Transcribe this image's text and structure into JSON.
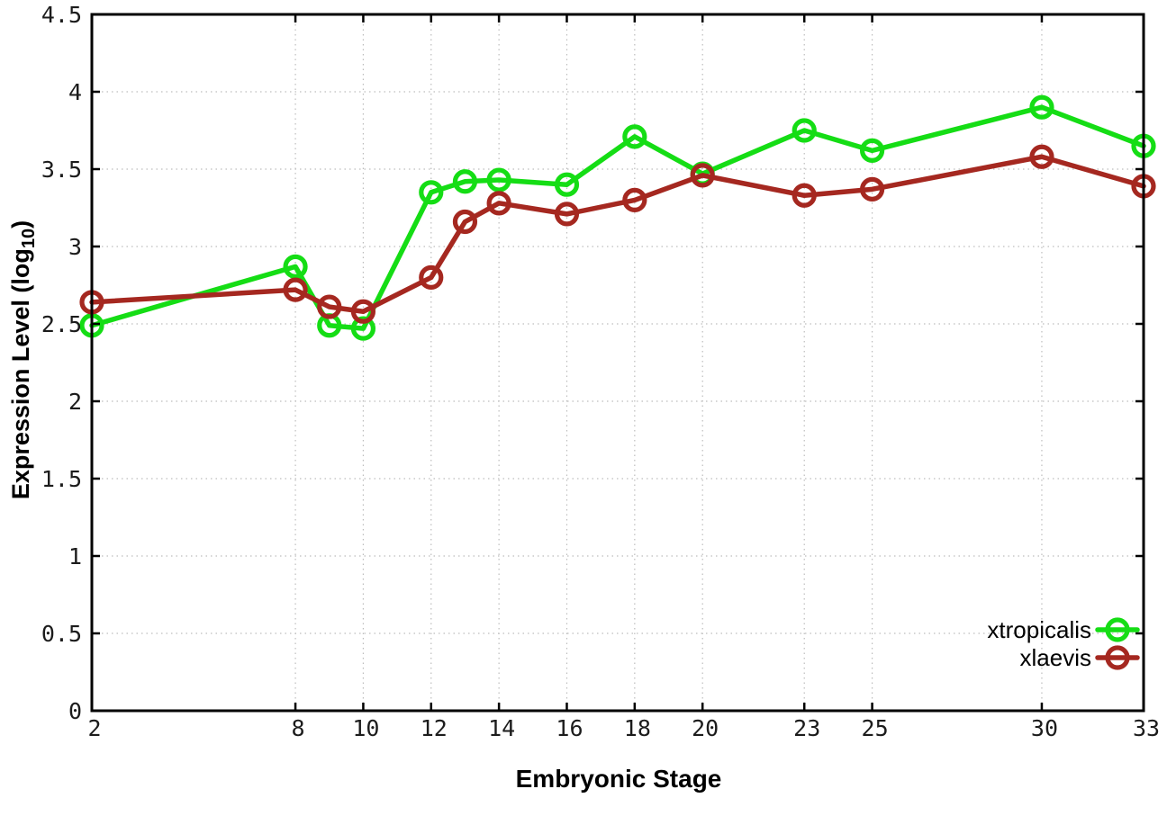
{
  "chart_data": {
    "type": "line",
    "title": "",
    "xlabel": "Embryonic Stage",
    "ylabel_prefix": "Expression Level (log",
    "ylabel_sub": "10",
    "ylabel_suffix": ")",
    "x": [
      2,
      8,
      9,
      10,
      12,
      13,
      14,
      16,
      18,
      20,
      23,
      25,
      30,
      33
    ],
    "series": [
      {
        "name": "xtropicalis",
        "color": "#15dd15",
        "values": [
          2.49,
          2.87,
          2.49,
          2.47,
          3.35,
          3.42,
          3.43,
          3.4,
          3.71,
          3.47,
          3.75,
          3.62,
          3.9,
          3.65
        ]
      },
      {
        "name": "xlaevis",
        "color": "#a52820",
        "values": [
          2.64,
          2.72,
          2.61,
          2.58,
          2.8,
          3.16,
          3.28,
          3.21,
          3.3,
          3.46,
          3.33,
          3.37,
          3.58,
          3.39
        ]
      }
    ],
    "xlim": [
      2,
      33
    ],
    "ylim": [
      0,
      4.5
    ],
    "x_ticks": [
      2,
      8,
      10,
      12,
      14,
      16,
      18,
      20,
      23,
      25,
      30,
      33
    ],
    "y_ticks": [
      0,
      0.5,
      1,
      1.5,
      2,
      2.5,
      3,
      3.5,
      4,
      4.5
    ],
    "grid": true,
    "marker": "open-circle",
    "legend_position": "bottom-right",
    "axis_color": "#000000",
    "grid_color": "#bdbdbd"
  }
}
